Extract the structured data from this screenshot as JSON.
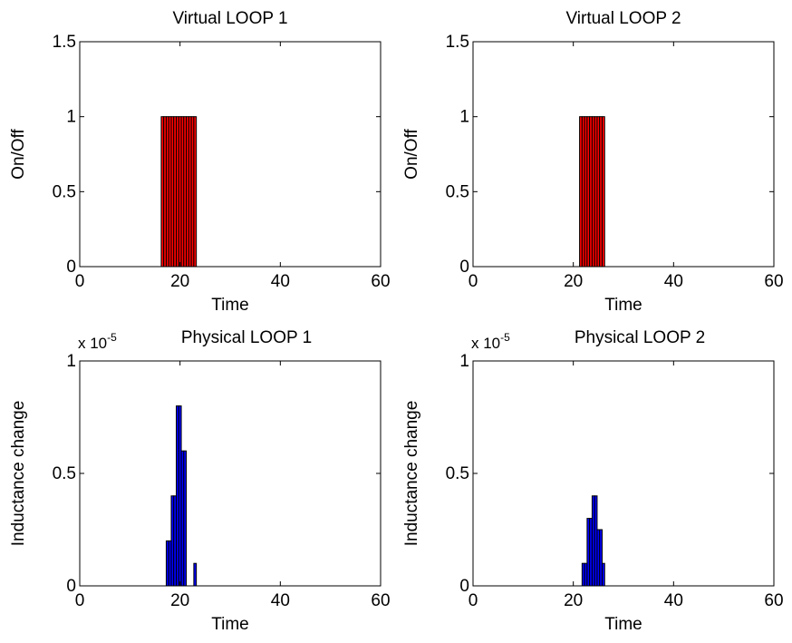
{
  "chart_data": [
    {
      "type": "bar",
      "title": "Virtual LOOP 1",
      "xlabel": "Time",
      "ylabel": "On/Off",
      "xlim": [
        0,
        60
      ],
      "ylim": [
        0,
        1.5
      ],
      "xticks": [
        "0",
        "20",
        "40",
        "60"
      ],
      "yticks": [
        "0",
        "0.5",
        "1",
        "1.5"
      ],
      "exponent_label": "",
      "bar_color": "#ff0000",
      "x": [
        16.5,
        17,
        17.5,
        18,
        18.5,
        19,
        19.5,
        20,
        20.5,
        21,
        21.5,
        22,
        22.5,
        23
      ],
      "values": [
        1,
        1,
        1,
        1,
        1,
        1,
        1,
        1,
        1,
        1,
        1,
        1,
        1,
        1
      ]
    },
    {
      "type": "bar",
      "title": "Virtual LOOP 2",
      "xlabel": "Time",
      "ylabel": "On/Off",
      "xlim": [
        0,
        60
      ],
      "ylim": [
        0,
        1.5
      ],
      "xticks": [
        "0",
        "20",
        "40",
        "60"
      ],
      "yticks": [
        "0",
        "0.5",
        "1",
        "1.5"
      ],
      "exponent_label": "",
      "bar_color": "#ff0000",
      "x": [
        21.5,
        22,
        22.5,
        23,
        23.5,
        24,
        24.5,
        25,
        25.5,
        26
      ],
      "values": [
        1,
        1,
        1,
        1,
        1,
        1,
        1,
        1,
        1,
        1
      ]
    },
    {
      "type": "bar",
      "title": "Physical LOOP 1",
      "xlabel": "Time",
      "ylabel": "Inductance change",
      "xlim": [
        0,
        60
      ],
      "ylim": [
        0,
        1
      ],
      "xticks": [
        "0",
        "20",
        "40",
        "60"
      ],
      "yticks": [
        "0",
        "0.5",
        "1"
      ],
      "exponent_label": "x 10",
      "exponent_power": "-5",
      "bar_color": "#0000ff",
      "x": [
        17.5,
        18,
        18.5,
        19,
        19.5,
        20,
        20.5,
        21,
        23
      ],
      "values": [
        0.2,
        0.2,
        0.4,
        0.4,
        0.8,
        0.8,
        0.6,
        0.6,
        0.1
      ]
    },
    {
      "type": "bar",
      "title": "Physical LOOP 2",
      "xlabel": "Time",
      "ylabel": "Inductance change",
      "xlim": [
        0,
        60
      ],
      "ylim": [
        0,
        1
      ],
      "xticks": [
        "0",
        "20",
        "40",
        "60"
      ],
      "yticks": [
        "0",
        "0.5",
        "1"
      ],
      "exponent_label": "x 10",
      "exponent_power": "-5",
      "bar_color": "#0000ff",
      "x": [
        22,
        22.5,
        23,
        23.5,
        24,
        24.5,
        25,
        25.5,
        26
      ],
      "values": [
        0.1,
        0.1,
        0.3,
        0.3,
        0.4,
        0.4,
        0.25,
        0.25,
        0.1
      ]
    }
  ]
}
